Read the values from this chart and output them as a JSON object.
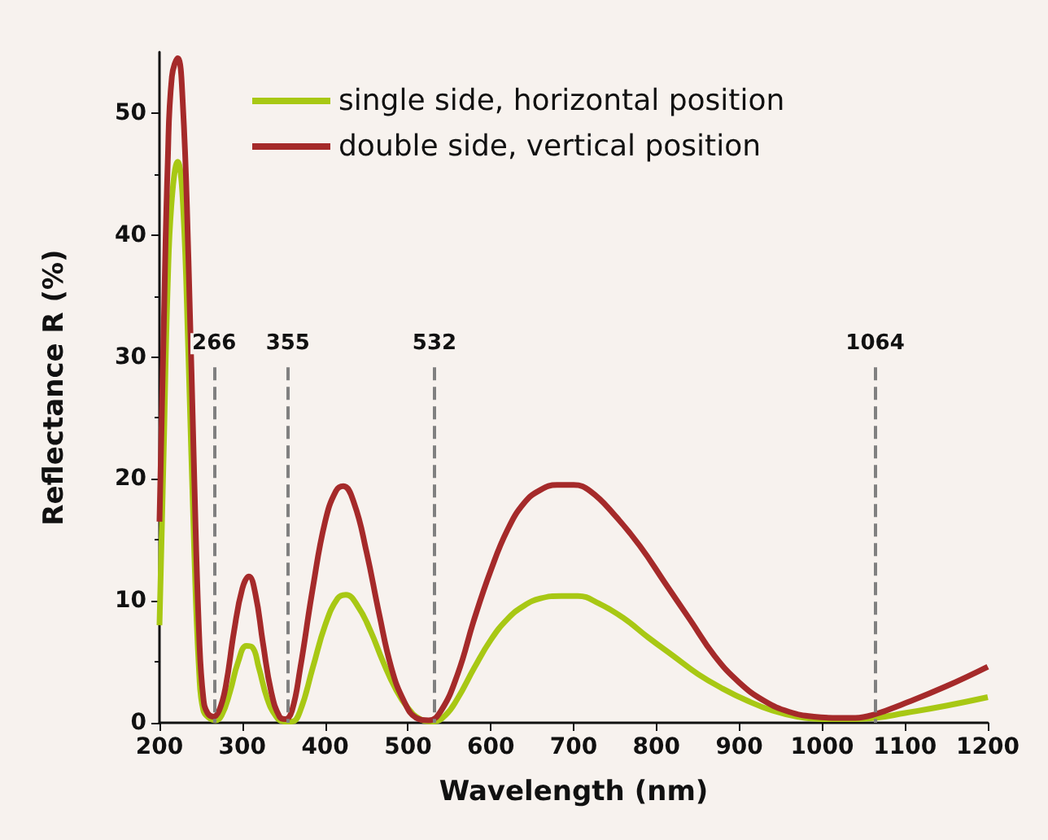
{
  "chart_data": {
    "type": "line",
    "xlabel": "Wavelength (nm)",
    "ylabel": "Reflectance R (%)",
    "xlim": [
      200,
      1200
    ],
    "xticks": [
      200,
      300,
      400,
      500,
      600,
      700,
      800,
      900,
      1000,
      1100,
      1200
    ],
    "ylim": [
      0,
      55
    ],
    "yticks": [
      0,
      10,
      20,
      30,
      40,
      50
    ],
    "grid": false,
    "legend": "top",
    "marker": "none",
    "line_style": "solid",
    "ref_lines": [
      {
        "axis": "x",
        "value": 266,
        "label": "266",
        "color": "#808080",
        "line_style": "dashed"
      },
      {
        "axis": "x",
        "value": 355,
        "label": "355",
        "color": "#808080",
        "line_style": "dashed"
      },
      {
        "axis": "x",
        "value": 532,
        "label": "532",
        "color": "#808080",
        "line_style": "dashed"
      },
      {
        "axis": "x",
        "value": 1064,
        "label": "1064",
        "color": "#808080",
        "line_style": "dashed"
      }
    ],
    "series": [
      {
        "name": "single side, horizontal position",
        "color": "#a8c814",
        "x": [
          200,
          205,
          210,
          215,
          222,
          228,
          235,
          242,
          248,
          253,
          260,
          268,
          275,
          285,
          295,
          305,
          312,
          320,
          330,
          340,
          350,
          360,
          370,
          385,
          400,
          415,
          425,
          440,
          455,
          470,
          485,
          500,
          515,
          530,
          545,
          560,
          580,
          600,
          620,
          640,
          660,
          685,
          705,
          730,
          760,
          790,
          820,
          850,
          880,
          910,
          940,
          970,
          1000,
          1030,
          1064,
          1100,
          1150,
          1200
        ],
        "values": [
          8,
          22,
          36,
          43,
          46,
          43,
          30,
          14,
          4,
          1,
          0.4,
          0.2,
          0.6,
          2.5,
          5,
          6.3,
          6.2,
          4.5,
          2,
          0.6,
          0.1,
          0.1,
          1,
          4.5,
          8,
          10.2,
          10.5,
          9.5,
          7.5,
          5,
          2.8,
          1.2,
          0.3,
          0.1,
          0.6,
          2,
          4.5,
          6.8,
          8.5,
          9.6,
          10.2,
          10.4,
          10.4,
          9.8,
          8.6,
          7,
          5.5,
          4,
          2.8,
          1.8,
          1,
          0.5,
          0.3,
          0.3,
          0.4,
          0.8,
          1.4,
          2.1
        ]
      },
      {
        "name": "double side, vertical position",
        "color": "#a52a2a",
        "x": [
          200,
          205,
          210,
          215,
          222,
          228,
          235,
          242,
          248,
          253,
          258,
          265,
          272,
          280,
          290,
          300,
          308,
          316,
          325,
          335,
          345,
          352,
          360,
          370,
          385,
          400,
          413,
          422,
          435,
          450,
          465,
          480,
          495,
          510,
          525,
          540,
          560,
          580,
          600,
          620,
          640,
          660,
          680,
          700,
          720,
          750,
          780,
          810,
          840,
          870,
          900,
          930,
          960,
          990,
          1020,
          1040,
          1064,
          1100,
          1150,
          1200
        ],
        "values": [
          16.5,
          32,
          46,
          53,
          54.5,
          51,
          38,
          20,
          7,
          2,
          0.8,
          0.5,
          1,
          3,
          7.5,
          11,
          12,
          10.5,
          6.5,
          2.5,
          0.5,
          0.3,
          1,
          4.5,
          11,
          16.5,
          19,
          19.4,
          18,
          14,
          9,
          4.5,
          1.8,
          0.4,
          0.2,
          1,
          4,
          8.5,
          12.5,
          15.8,
          18,
          19.1,
          19.5,
          19.5,
          19,
          17,
          14.5,
          11.5,
          8.5,
          5.5,
          3.3,
          1.8,
          0.9,
          0.5,
          0.4,
          0.4,
          0.7,
          1.6,
          3,
          4.6
        ]
      }
    ]
  }
}
